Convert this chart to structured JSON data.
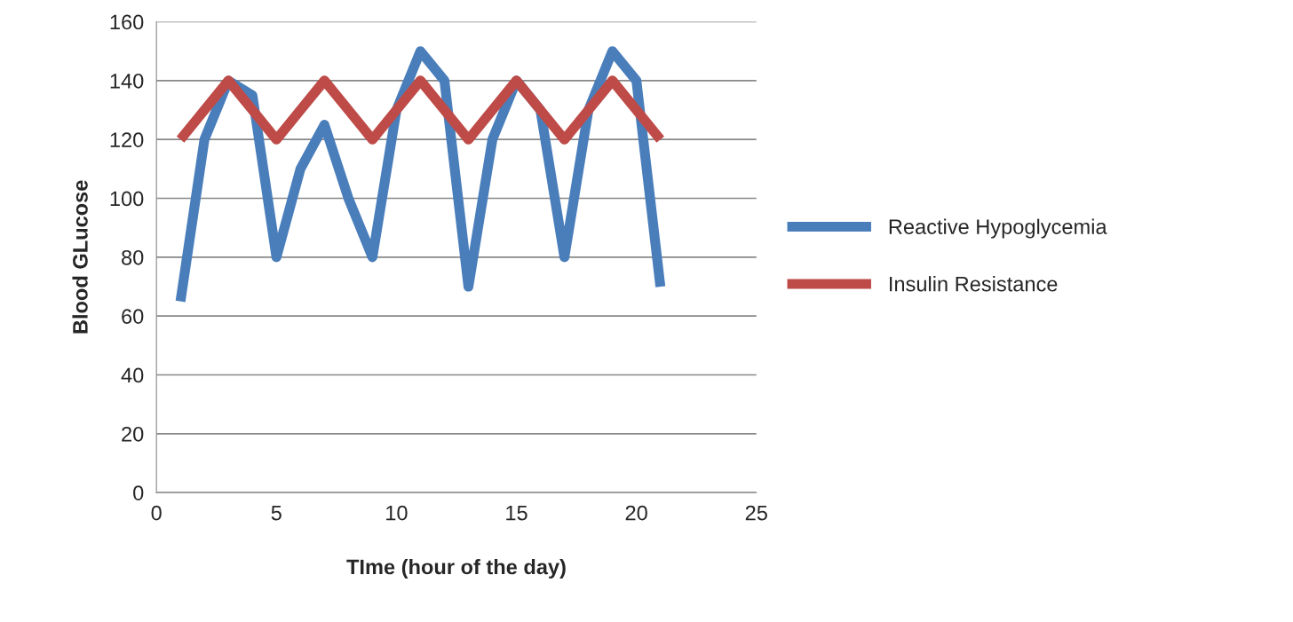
{
  "chart_data": {
    "type": "line",
    "xlabel": "TIme (hour of the day)",
    "ylabel": "Blood GLucose",
    "x": [
      1,
      2,
      3,
      4,
      5,
      6,
      7,
      8,
      9,
      10,
      11,
      12,
      13,
      14,
      15,
      16,
      17,
      18,
      19,
      20,
      21
    ],
    "series": [
      {
        "name": "Reactive Hypoglycemia",
        "color": "#4a7ebb",
        "values": [
          65,
          120,
          140,
          135,
          80,
          110,
          125,
          100,
          80,
          130,
          150,
          140,
          70,
          120,
          140,
          130,
          80,
          130,
          150,
          140,
          70
        ]
      },
      {
        "name": "Insulin Resistance",
        "color": "#be4b48",
        "values": [
          120,
          130,
          140,
          130,
          120,
          130,
          140,
          130,
          120,
          130,
          140,
          130,
          120,
          130,
          140,
          130,
          120,
          130,
          140,
          130,
          120
        ]
      }
    ],
    "xlim": [
      0,
      25
    ],
    "xticks": [
      0,
      5,
      10,
      15,
      20,
      25
    ],
    "ylim": [
      0,
      160
    ],
    "yticks": [
      0,
      20,
      40,
      60,
      80,
      100,
      120,
      140,
      160
    ],
    "grid": "y",
    "legend": "right",
    "marker": "none",
    "line_style": "solid"
  }
}
